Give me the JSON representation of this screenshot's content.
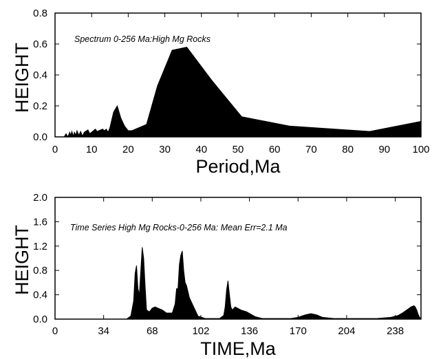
{
  "chart_data": [
    {
      "type": "area",
      "annotation": "Spectrum 0-256 Ma:High Mg Rocks",
      "xlabel": "Period,Ma",
      "ylabel": "HEIGHT",
      "xlim": [
        0,
        100
      ],
      "ylim": [
        0,
        0.8
      ],
      "xticks": [
        "0",
        "10",
        "20",
        "30",
        "40",
        "50",
        "60",
        "70",
        "80",
        "90",
        "100"
      ],
      "yticks": [
        "0.0",
        "0.2",
        "0.4",
        "0.6",
        "0.8"
      ],
      "grid": false,
      "fill_color": "#000000",
      "x": [
        0,
        2.5,
        3,
        3.5,
        4,
        4.3,
        4.6,
        5,
        5.3,
        5.7,
        6,
        6.5,
        7,
        7.5,
        8,
        9,
        9.5,
        10,
        11,
        11.5,
        12,
        12.5,
        13,
        13.5,
        14,
        14.5,
        15,
        16,
        17,
        18,
        19,
        20,
        21,
        23,
        25,
        28,
        32,
        36,
        43,
        51,
        64,
        86,
        100
      ],
      "values": [
        0,
        0,
        0.02,
        0,
        0.03,
        0.01,
        0.035,
        0.005,
        0.03,
        0.01,
        0.04,
        0.01,
        0.035,
        0.005,
        0.03,
        0.045,
        0.02,
        0.03,
        0.05,
        0.035,
        0.04,
        0.045,
        0.05,
        0.04,
        0.05,
        0.03,
        0.06,
        0.16,
        0.2,
        0.12,
        0.07,
        0.04,
        0.04,
        0.06,
        0.08,
        0.33,
        0.56,
        0.58,
        0.36,
        0.13,
        0.07,
        0.035,
        0.1
      ]
    },
    {
      "type": "area",
      "annotation": "Time Series High Mg Rocks-0-256 Ma: Mean Err=2.1 Ma",
      "xlabel": "TIME,Ma",
      "ylabel": "HEIGHT",
      "xlim": [
        0,
        256
      ],
      "ylim": [
        0,
        2.0
      ],
      "xticks": [
        "0",
        "34",
        "68",
        "102",
        "136",
        "170",
        "204",
        "238"
      ],
      "yticks": [
        "0.0",
        "0.4",
        "0.8",
        "1.2",
        "1.6",
        "2.0"
      ],
      "grid": false,
      "fill_color": "#000000",
      "x": [
        0,
        50,
        53,
        55,
        56,
        57,
        58,
        59,
        60,
        61,
        62,
        63,
        64,
        66,
        68,
        70,
        72,
        75,
        78,
        82,
        84,
        85,
        86,
        87,
        88,
        89,
        90,
        91,
        92,
        94,
        96,
        98,
        100,
        105,
        115,
        118,
        119,
        120,
        121,
        122,
        123,
        124,
        126,
        130,
        134,
        137,
        140,
        145,
        150,
        165,
        170,
        175,
        179,
        183,
        187,
        195,
        210,
        225,
        235,
        240,
        243,
        246,
        249,
        251,
        252,
        253,
        254,
        255,
        256
      ],
      "values": [
        0,
        0,
        0.05,
        0.3,
        0.75,
        0.88,
        0.5,
        0.4,
        0.8,
        1.18,
        1.0,
        0.55,
        0.15,
        0.12,
        0.18,
        0.2,
        0.18,
        0.15,
        0.1,
        0.1,
        0.25,
        0.5,
        0.5,
        0.9,
        1.05,
        1.12,
        0.8,
        0.6,
        0.55,
        0.35,
        0.25,
        0.15,
        0.05,
        0.01,
        0.01,
        0.06,
        0.2,
        0.48,
        0.63,
        0.4,
        0.2,
        0.15,
        0.2,
        0.15,
        0.12,
        0.08,
        0.04,
        0.01,
        0.01,
        0.01,
        0.03,
        0.07,
        0.09,
        0.07,
        0.03,
        0.01,
        0.01,
        0.01,
        0.03,
        0.06,
        0.1,
        0.15,
        0.2,
        0.22,
        0.2,
        0.15,
        0.08,
        0.03,
        0.01
      ]
    }
  ]
}
